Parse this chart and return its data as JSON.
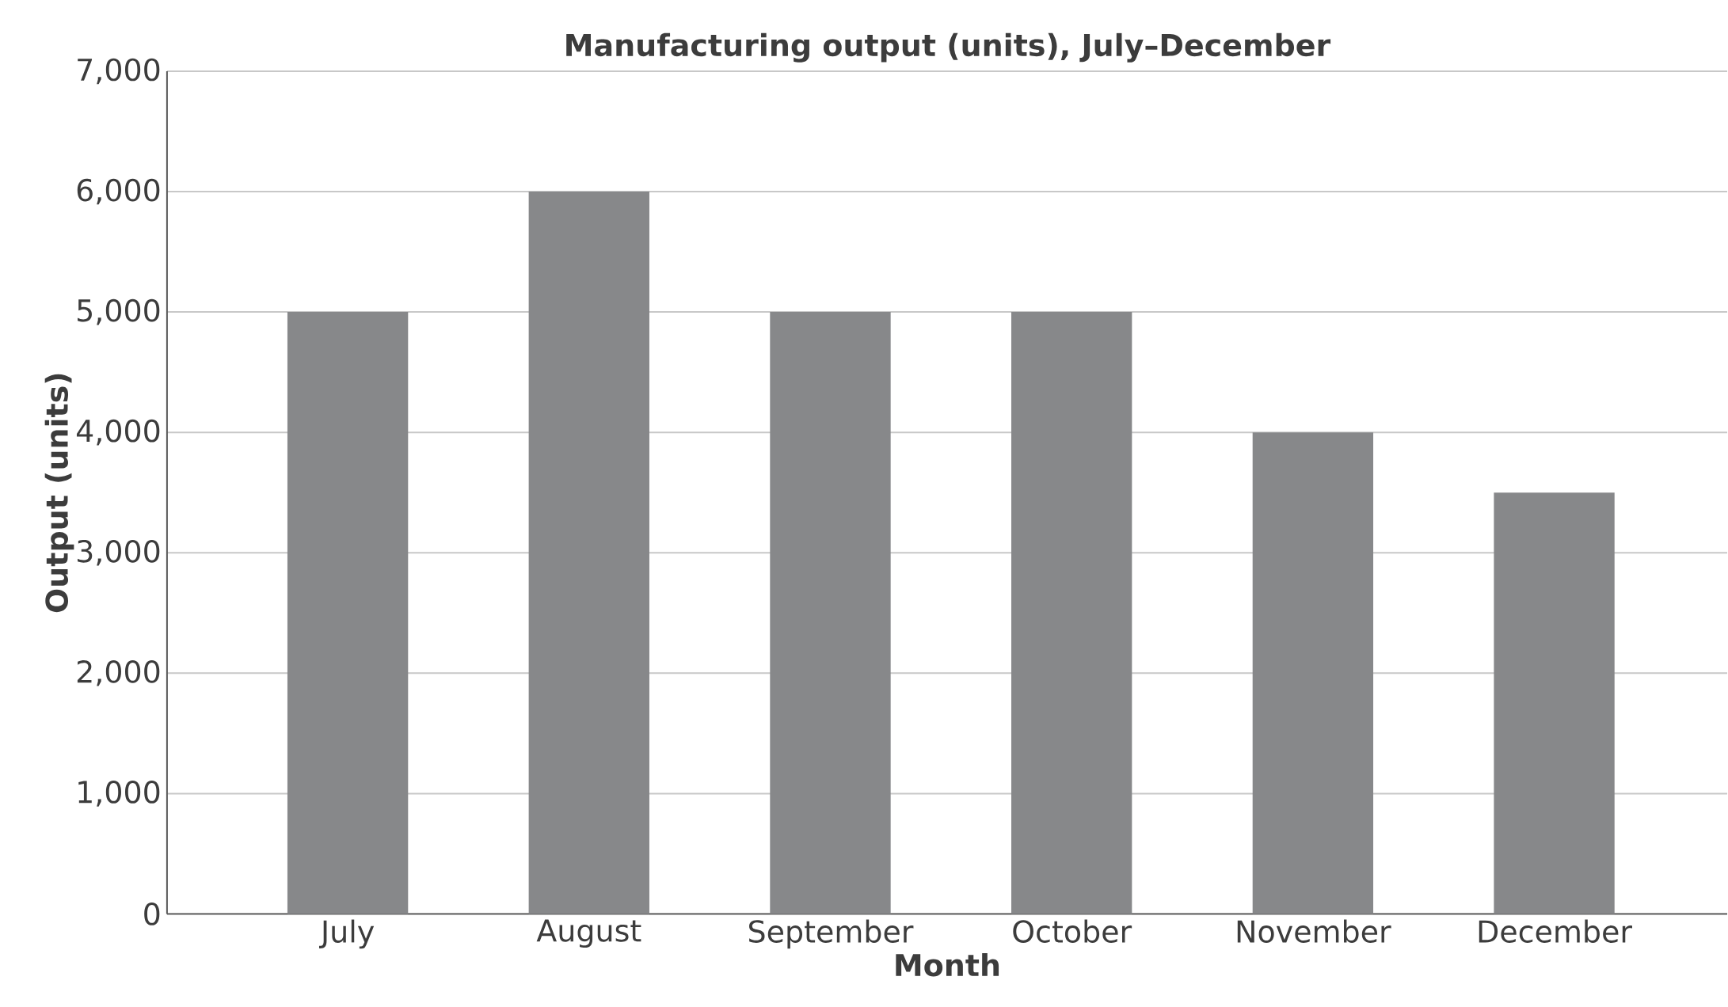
{
  "chart_data": {
    "type": "bar",
    "title": "Manufacturing output (units), July–December",
    "xlabel": "Month",
    "ylabel": "Output (units)",
    "categories": [
      "July",
      "August",
      "September",
      "October",
      "November",
      "December"
    ],
    "values": [
      5000,
      6000,
      5000,
      5000,
      4000,
      3500
    ],
    "color": "#87888a",
    "ylim": [
      0,
      7000
    ],
    "yticks": [
      0,
      {
        "value": 1000,
        "label": "1,000"
      },
      {
        "value": 2000,
        "label": "2,000"
      },
      {
        "value": 3000,
        "label": "3,000"
      },
      {
        "value": 4000,
        "label": "4,000"
      },
      {
        "value": 5000,
        "label": "5,000"
      },
      {
        "value": 6000,
        "label": "6,000"
      },
      {
        "value": 7000,
        "label": "7,000"
      }
    ],
    "grid": "y"
  }
}
